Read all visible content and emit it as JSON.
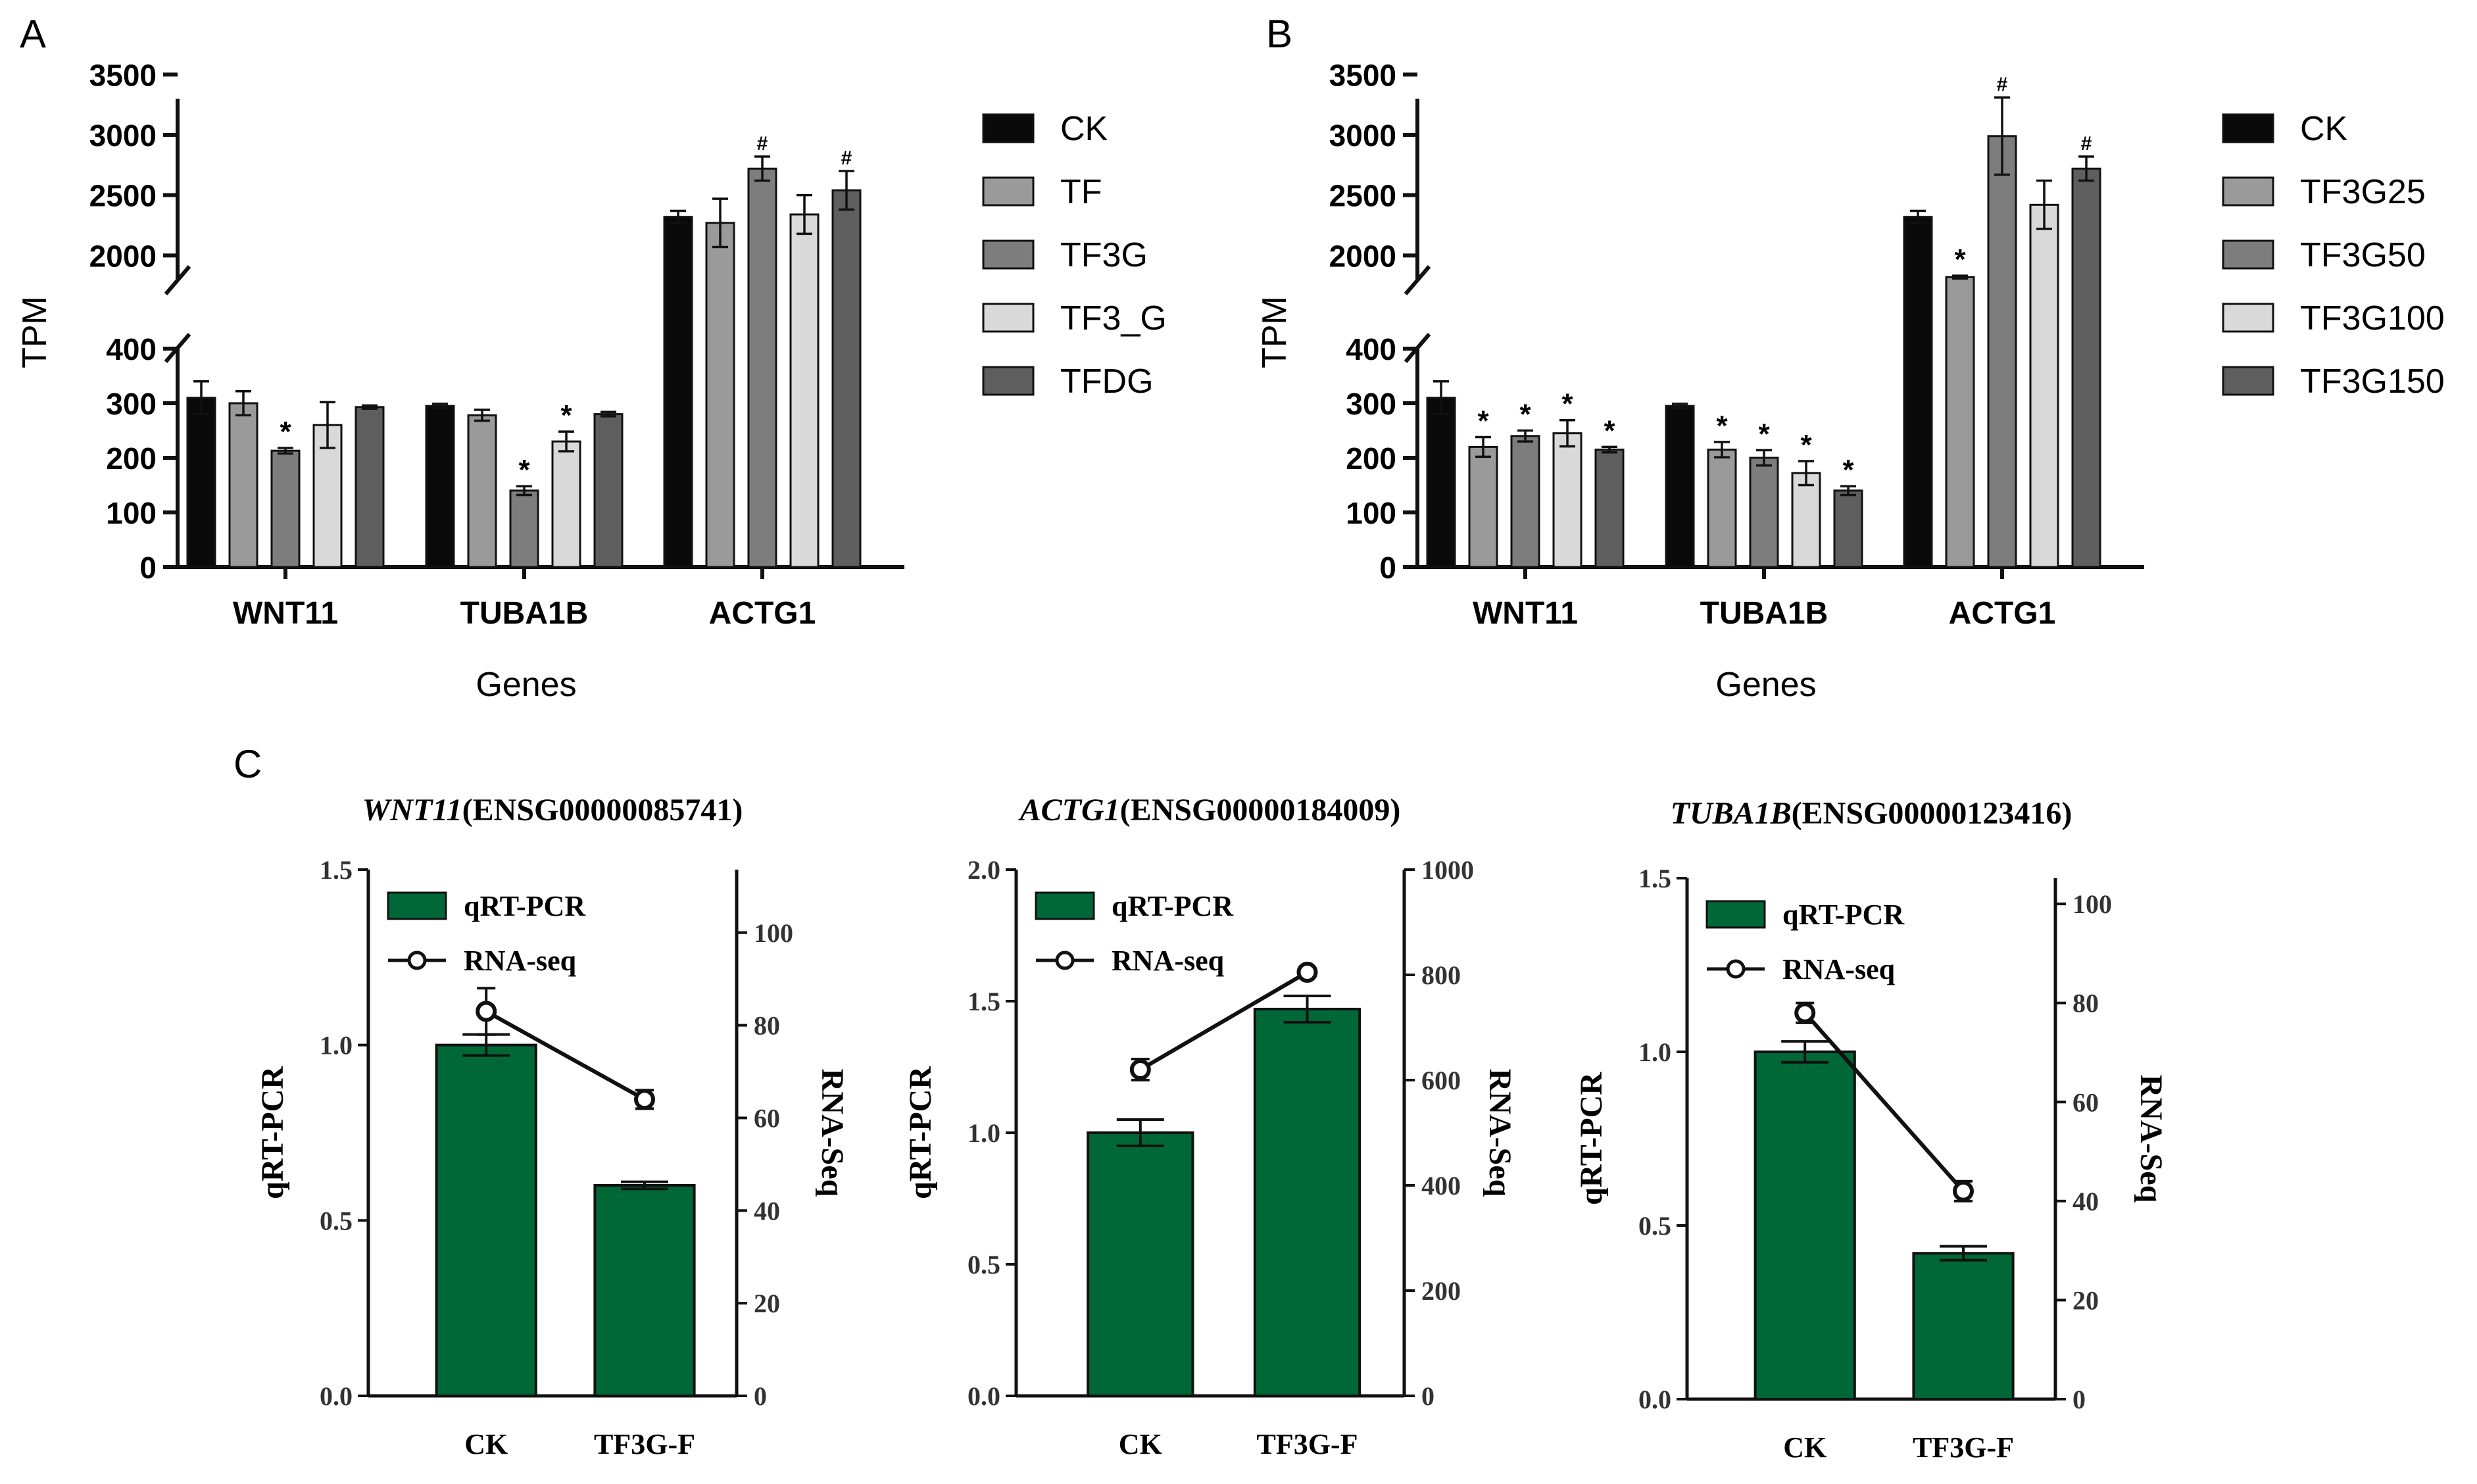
{
  "panel_labels": {
    "a": "A",
    "b": "B",
    "c": "C"
  },
  "chart_data": [
    {
      "id": "A",
      "type": "bar",
      "xlabel": "Genes",
      "ylabel": "TPM",
      "categories": [
        "WNT11",
        "TUBA1B",
        "ACTG1"
      ],
      "y_ticks_lower": [
        "0",
        "100",
        "200",
        "300",
        "400"
      ],
      "y_ticks_upper": [
        "2000",
        "2500",
        "3000",
        "3500"
      ],
      "y_break": [
        400,
        1800
      ],
      "series": [
        {
          "name": "CK",
          "color": "#0a0a0a",
          "values": [
            310,
            295,
            2320
          ],
          "errors": [
            30,
            4,
            50
          ],
          "marks": [
            "",
            "",
            ""
          ]
        },
        {
          "name": "TF",
          "color": "#9a9a9a",
          "values": [
            300,
            278,
            2270
          ],
          "errors": [
            22,
            10,
            200
          ],
          "marks": [
            "",
            "",
            ""
          ]
        },
        {
          "name": "TF3G",
          "color": "#7d7d7d",
          "values": [
            213,
            140,
            2720
          ],
          "errors": [
            5,
            8,
            100
          ],
          "marks": [
            "*",
            "*",
            "#"
          ]
        },
        {
          "name": "TF3_G",
          "color": "#d9d9d9",
          "values": [
            260,
            230,
            2340
          ],
          "errors": [
            42,
            18,
            160
          ],
          "marks": [
            "",
            "*",
            ""
          ]
        },
        {
          "name": "TFDG",
          "color": "#5e5e5e",
          "values": [
            293,
            280,
            2540
          ],
          "errors": [
            3,
            4,
            160
          ],
          "marks": [
            "",
            "",
            "#"
          ]
        }
      ]
    },
    {
      "id": "B",
      "type": "bar",
      "xlabel": "Genes",
      "ylabel": "TPM",
      "categories": [
        "WNT11",
        "TUBA1B",
        "ACTG1"
      ],
      "y_ticks_lower": [
        "0",
        "100",
        "200",
        "300",
        "400"
      ],
      "y_ticks_upper": [
        "2000",
        "2500",
        "3000",
        "3500"
      ],
      "y_break": [
        400,
        1800
      ],
      "series": [
        {
          "name": "CK",
          "color": "#0a0a0a",
          "values": [
            310,
            295,
            2320
          ],
          "errors": [
            30,
            4,
            50
          ],
          "marks": [
            "",
            "",
            ""
          ]
        },
        {
          "name": "TF3G25",
          "color": "#9a9a9a",
          "values": [
            220,
            215,
            1820
          ],
          "errors": [
            18,
            14,
            12
          ],
          "marks": [
            "*",
            "*",
            "*"
          ]
        },
        {
          "name": "TF3G50",
          "color": "#7d7d7d",
          "values": [
            240,
            200,
            2990
          ],
          "errors": [
            10,
            14,
            320
          ],
          "marks": [
            "*",
            "*",
            "#"
          ]
        },
        {
          "name": "TF3G100",
          "color": "#d9d9d9",
          "values": [
            245,
            172,
            2420
          ],
          "errors": [
            24,
            22,
            200
          ],
          "marks": [
            "*",
            "*",
            ""
          ]
        },
        {
          "name": "TF3G150",
          "color": "#5e5e5e",
          "values": [
            215,
            140,
            2720
          ],
          "errors": [
            5,
            8,
            100
          ],
          "marks": [
            "*",
            "*",
            "#"
          ]
        }
      ]
    },
    {
      "id": "C1",
      "type": "bar+line",
      "title_gene": "WNT11",
      "title_id": "(ENSG00000085741)",
      "categories": [
        "CK",
        "TF3G-F"
      ],
      "left_ylabel": "qRT-PCR",
      "right_ylabel": "RNA-Seq",
      "left_ylim": [
        0,
        1.5
      ],
      "right_ylim": [
        0,
        113.6
      ],
      "left_ticks": [
        "0.0",
        "0.5",
        "1.0",
        "1.5"
      ],
      "right_ticks": [
        "0",
        "20",
        "40",
        "60",
        "80",
        "100"
      ],
      "bar_color": "#006837",
      "qrt_pcr": {
        "name": "qRT-PCR",
        "values": [
          1.0,
          0.6
        ],
        "errors": [
          0.03,
          0.01
        ]
      },
      "rna_seq": {
        "name": "RNA-seq",
        "values": [
          83,
          64
        ],
        "errors": [
          5,
          2
        ]
      }
    },
    {
      "id": "C2",
      "type": "bar+line",
      "title_gene": "ACTG1",
      "title_id": "(ENSG00000184009)",
      "categories": [
        "CK",
        "TF3G-F"
      ],
      "left_ylabel": "qRT-PCR",
      "right_ylabel": "RNA-Seq",
      "left_ylim": [
        0,
        2.0
      ],
      "right_ylim": [
        0,
        1000
      ],
      "left_ticks": [
        "0.0",
        "0.5",
        "1.0",
        "1.5",
        "2.0"
      ],
      "right_ticks": [
        "0",
        "200",
        "400",
        "600",
        "800",
        "1000"
      ],
      "bar_color": "#006837",
      "qrt_pcr": {
        "name": "qRT-PCR",
        "values": [
          1.0,
          1.47
        ],
        "errors": [
          0.05,
          0.05
        ]
      },
      "rna_seq": {
        "name": "RNA-seq",
        "values": [
          620,
          805
        ],
        "errors": [
          20,
          8
        ]
      }
    },
    {
      "id": "C3",
      "type": "bar+line",
      "title_gene": "TUBA1B",
      "title_id": "(ENSG00000123416)",
      "categories": [
        "CK",
        "TF3G-F"
      ],
      "left_ylabel": "qRT-PCR",
      "right_ylabel": "RNA-Seq",
      "left_ylim": [
        0,
        1.5
      ],
      "right_ylim": [
        0,
        105.2
      ],
      "left_ticks": [
        "0.0",
        "0.5",
        "1.0",
        "1.5"
      ],
      "right_ticks": [
        "0",
        "20",
        "40",
        "60",
        "80",
        "100"
      ],
      "bar_color": "#006837",
      "qrt_pcr": {
        "name": "qRT-PCR",
        "values": [
          1.0,
          0.42
        ],
        "errors": [
          0.03,
          0.02
        ]
      },
      "rna_seq": {
        "name": "RNA-seq",
        "values": [
          78,
          42
        ],
        "errors": [
          2,
          2
        ]
      }
    }
  ]
}
